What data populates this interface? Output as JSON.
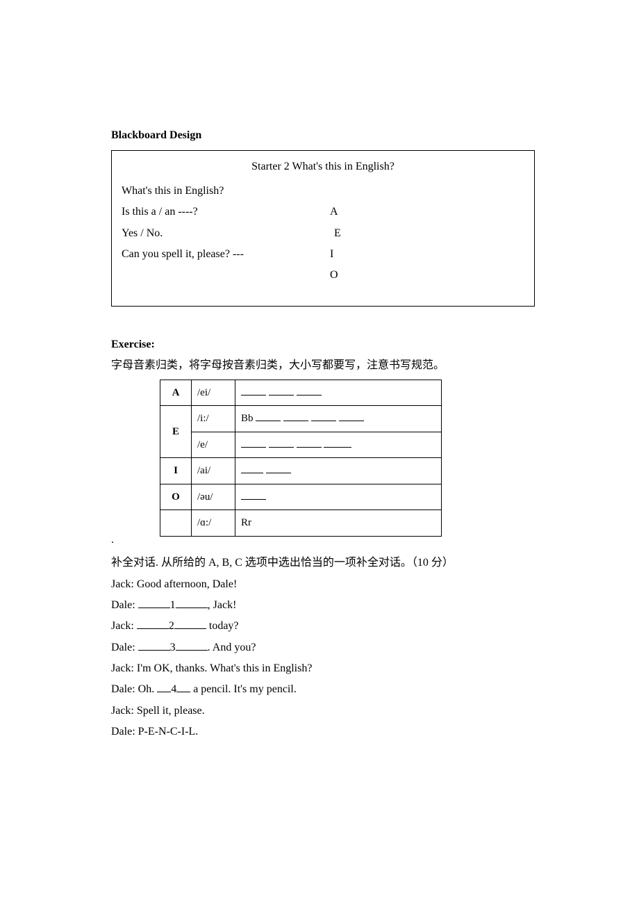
{
  "heading_blackboard": "Blackboard Design",
  "bb": {
    "title": "Starter 2 What's this in English?",
    "left": [
      "What's this in English?",
      "Is this a / an ----?",
      "Yes / No.",
      "Can you spell it, please? ---"
    ],
    "right": [
      "A",
      "E",
      "I",
      "O"
    ]
  },
  "exercise": {
    "heading": "Exercise:",
    "instruction": "字母音素归类，将字母按音素归类，大小写都要写，注意书写规范。",
    "table": {
      "rows": [
        {
          "letter": "A",
          "rowspan": 1,
          "sound": "/ei/",
          "content_blanks": 3
        },
        {
          "letter": "E",
          "rowspan": 2,
          "sound": "/i:/",
          "prefix": "Bb",
          "content_blanks": 4
        },
        {
          "letter": "",
          "rowspan": 0,
          "sound": "/e/",
          "content_blanks": 4
        },
        {
          "letter": "I",
          "rowspan": 1,
          "sound": "/ai/",
          "content_blanks": 2
        },
        {
          "letter": "O",
          "rowspan": 1,
          "sound": "/əu/",
          "content_blanks": 1
        },
        {
          "letter": "",
          "rowspan": 1,
          "sound": "/ɑ:/",
          "prefix": "Rr",
          "content_blanks": 0
        }
      ]
    }
  },
  "dialogue": {
    "instruction": "补全对话. 从所给的 A, B, C 选项中选出恰当的一项补全对话。（10 分）",
    "lines": [
      {
        "text_parts": [
          "Jack: Good afternoon, Dale!"
        ]
      },
      {
        "text_parts": [
          "Dale: ",
          "__BLANK46__",
          "1",
          "__BLANK46__",
          ", Jack!"
        ]
      },
      {
        "text_parts": [
          "Jack: ",
          "__BLANK46__",
          "2",
          "__BLANK46__",
          " today?"
        ]
      },
      {
        "text_parts": [
          "Dale: ",
          "__BLANK46__",
          "3",
          "__BLANK46__",
          ". And you?"
        ]
      },
      {
        "text_parts": [
          "Jack: I'm OK, thanks. What's this in English?"
        ]
      },
      {
        "text_parts": [
          "Dale: Oh. ",
          "__BLANK20__",
          "4",
          "__BLANK20__",
          " a pencil. It's my pencil."
        ]
      },
      {
        "text_parts": [
          "Jack: Spell it, please."
        ]
      },
      {
        "text_parts": [
          "Dale: P-E-N-C-I-L."
        ]
      }
    ]
  },
  "blank_widths": {
    "w32": 32,
    "w36": 36,
    "w40": 40,
    "w46": 46
  }
}
